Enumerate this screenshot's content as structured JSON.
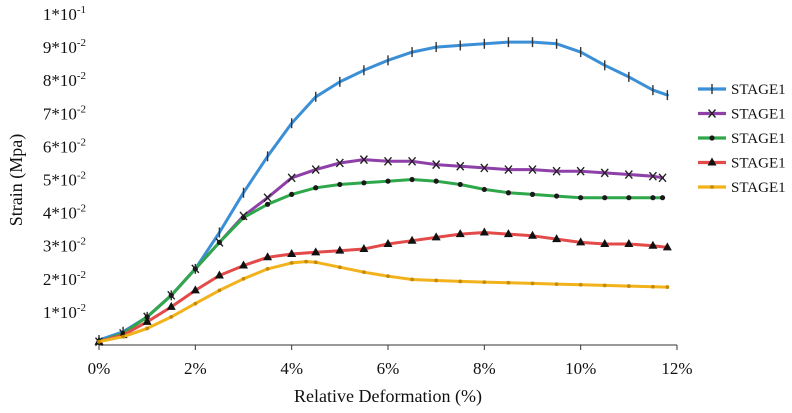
{
  "chart_data": {
    "type": "line",
    "title": "",
    "xlabel": "Relative Deformation (%)",
    "ylabel": "Strain (Mpa)",
    "xlim": [
      0,
      12
    ],
    "ylim": [
      0,
      0.1
    ],
    "x_ticks": [
      {
        "value": 0,
        "label": "0%"
      },
      {
        "value": 2,
        "label": "2%"
      },
      {
        "value": 4,
        "label": "4%"
      },
      {
        "value": 6,
        "label": "6%"
      },
      {
        "value": 8,
        "label": "8%"
      },
      {
        "value": 10,
        "label": "10%"
      },
      {
        "value": 12,
        "label": "12%"
      }
    ],
    "y_ticks": [
      {
        "value": 0.01,
        "base": "1*10",
        "exp": "-2"
      },
      {
        "value": 0.02,
        "base": "2*10",
        "exp": "-2"
      },
      {
        "value": 0.03,
        "base": "3*10",
        "exp": "-2"
      },
      {
        "value": 0.04,
        "base": "4*10",
        "exp": "-2"
      },
      {
        "value": 0.05,
        "base": "5*10",
        "exp": "-2"
      },
      {
        "value": 0.06,
        "base": "6*10",
        "exp": "-2"
      },
      {
        "value": 0.07,
        "base": "7*10",
        "exp": "-2"
      },
      {
        "value": 0.08,
        "base": "8*10",
        "exp": "-2"
      },
      {
        "value": 0.09,
        "base": "9*10",
        "exp": "-2"
      },
      {
        "value": 0.1,
        "base": "1*10",
        "exp": "-1"
      }
    ],
    "legend_position": "right",
    "series": [
      {
        "name": "STAGE1",
        "color": "#3a8fd6",
        "marker": "plus",
        "x": [
          0,
          0.5,
          1,
          1.5,
          2,
          2.5,
          3,
          3.5,
          4,
          4.5,
          5,
          5.5,
          6,
          6.5,
          7,
          7.5,
          8,
          8.5,
          9,
          9.5,
          10,
          10.5,
          11,
          11.5,
          11.8
        ],
        "y": [
          0.0015,
          0.004,
          0.0085,
          0.015,
          0.023,
          0.034,
          0.046,
          0.057,
          0.067,
          0.075,
          0.0795,
          0.083,
          0.086,
          0.0885,
          0.09,
          0.0905,
          0.091,
          0.0915,
          0.0915,
          0.091,
          0.0885,
          0.0845,
          0.081,
          0.077,
          0.0755
        ]
      },
      {
        "name": "STAGE1",
        "color": "#8e3fa8",
        "marker": "x",
        "x": [
          0,
          0.5,
          1,
          1.5,
          2,
          2.5,
          3,
          3.5,
          4,
          4.5,
          5,
          5.5,
          6,
          6.5,
          7,
          7.5,
          8,
          8.5,
          9,
          9.5,
          10,
          10.5,
          11,
          11.5,
          11.7
        ],
        "y": [
          0.001,
          0.0035,
          0.0085,
          0.015,
          0.023,
          0.031,
          0.039,
          0.0445,
          0.0505,
          0.053,
          0.055,
          0.056,
          0.0555,
          0.0555,
          0.0545,
          0.054,
          0.0535,
          0.053,
          0.053,
          0.0525,
          0.0525,
          0.052,
          0.0515,
          0.051,
          0.0505
        ]
      },
      {
        "name": "STAGE1",
        "color": "#2ea84a",
        "marker": "dot",
        "x": [
          0,
          0.5,
          1,
          1.5,
          2,
          2.5,
          3,
          3.5,
          4,
          4.5,
          5,
          5.5,
          6,
          6.5,
          7,
          7.5,
          8,
          8.5,
          9,
          9.5,
          10,
          10.5,
          11,
          11.5,
          11.7
        ],
        "y": [
          0.001,
          0.0035,
          0.0085,
          0.015,
          0.023,
          0.031,
          0.0385,
          0.0425,
          0.0455,
          0.0475,
          0.0485,
          0.049,
          0.0495,
          0.05,
          0.0495,
          0.0485,
          0.047,
          0.046,
          0.0455,
          0.045,
          0.0445,
          0.0445,
          0.0445,
          0.0445,
          0.0445
        ]
      },
      {
        "name": "STAGE1",
        "color": "#e34a4a",
        "marker": "triangle",
        "x": [
          0,
          0.5,
          1,
          1.5,
          2,
          2.5,
          3,
          3.5,
          4,
          4.5,
          5,
          5.5,
          6,
          6.5,
          7,
          7.5,
          8,
          8.5,
          9,
          9.5,
          10,
          10.5,
          11,
          11.5,
          11.8
        ],
        "y": [
          0.001,
          0.003,
          0.007,
          0.0115,
          0.0165,
          0.021,
          0.024,
          0.0265,
          0.0275,
          0.028,
          0.0285,
          0.029,
          0.0305,
          0.0315,
          0.0325,
          0.0335,
          0.034,
          0.0335,
          0.033,
          0.032,
          0.031,
          0.0305,
          0.0305,
          0.03,
          0.0295
        ]
      },
      {
        "name": "STAGE1",
        "color": "#f2b21b",
        "marker": "smalldot",
        "x": [
          0,
          0.5,
          1,
          1.5,
          2,
          2.5,
          3,
          3.5,
          4,
          4.3,
          4.5,
          5,
          5.5,
          6,
          6.5,
          7,
          7.5,
          8,
          8.5,
          9,
          9.5,
          10,
          10.5,
          11,
          11.5,
          11.8
        ],
        "y": [
          0.001,
          0.0025,
          0.005,
          0.0085,
          0.0125,
          0.0165,
          0.02,
          0.023,
          0.0248,
          0.0252,
          0.025,
          0.0235,
          0.022,
          0.0208,
          0.0198,
          0.0195,
          0.0192,
          0.019,
          0.0188,
          0.0186,
          0.0184,
          0.0182,
          0.018,
          0.0178,
          0.0176,
          0.0175
        ]
      }
    ]
  }
}
